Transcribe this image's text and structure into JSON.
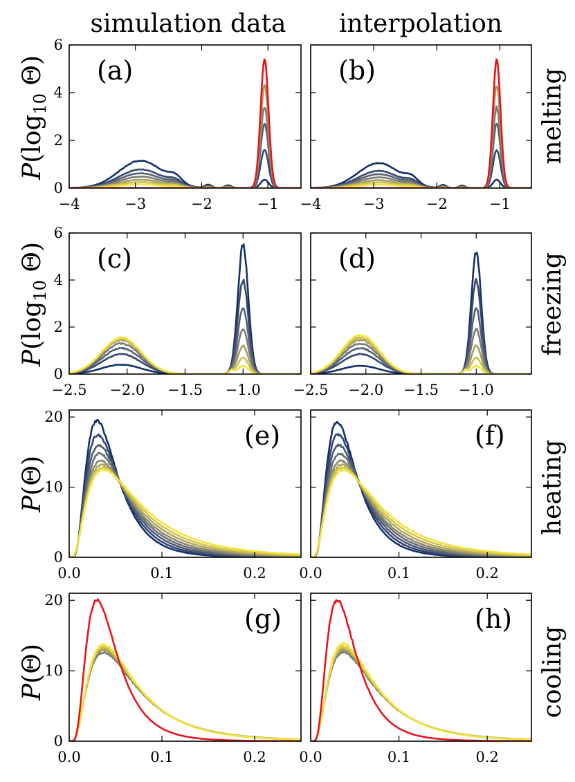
{
  "figure": {
    "col_titles": [
      "simulation data",
      "interpolation"
    ],
    "row_titles": [
      "melting",
      "freezing",
      "heating",
      "cooling"
    ],
    "ylabels": {
      "log": {
        "P": "P",
        "open": "(log",
        "sub": "10",
        "theta": " Θ)"
      },
      "lin": {
        "P": "P",
        "rest": "(Θ)"
      }
    }
  },
  "chart_data": [
    {
      "id": "a",
      "type": "line",
      "panel_label": "(a)",
      "row": "melting",
      "column": "simulation data",
      "xlim": [
        -4,
        -0.5
      ],
      "ylim": [
        0,
        6
      ],
      "xticks": [
        -4,
        -3,
        -2,
        -1
      ],
      "xtick_labels": [
        "−4",
        "−3",
        "−2",
        "−1"
      ],
      "yticks": [
        0,
        2,
        4,
        6
      ],
      "ytick_labels": [
        "0",
        "2",
        "4",
        "6"
      ],
      "label_position": "top-left",
      "family": "melting",
      "bump_scale": [
        1.15,
        0.78,
        0.62,
        0.48,
        0.35,
        0.25,
        0.16
      ],
      "peak_heights": [
        0.35,
        1.6,
        2.7,
        3.4,
        4.3,
        5.4
      ],
      "highlight_color": "#e8141c"
    },
    {
      "id": "b",
      "type": "line",
      "panel_label": "(b)",
      "row": "melting",
      "column": "interpolation",
      "xlim": [
        -4,
        -0.5
      ],
      "ylim": [
        0,
        6
      ],
      "xticks": [
        -4,
        -3,
        -2,
        -1
      ],
      "xtick_labels": [
        "−4",
        "−3",
        "−2",
        "−1"
      ],
      "yticks": [
        0,
        2,
        4,
        6
      ],
      "ytick_labels": [
        "",
        "",
        "",
        ""
      ],
      "label_position": "top-left",
      "family": "melting",
      "bump_scale": [
        1.05,
        0.72,
        0.58,
        0.45,
        0.33,
        0.24,
        0.15
      ],
      "peak_heights": [
        0.35,
        1.6,
        2.7,
        3.4,
        4.3,
        5.4
      ],
      "highlight_color": "#e8141c"
    },
    {
      "id": "c",
      "type": "line",
      "panel_label": "(c)",
      "row": "freezing",
      "column": "simulation data",
      "xlim": [
        -2.5,
        -0.5
      ],
      "ylim": [
        0,
        6
      ],
      "xticks": [
        -2.5,
        -2.0,
        -1.5,
        -1.0
      ],
      "xtick_labels": [
        "−2.5",
        "−2.0",
        "−1.5",
        "−1.0"
      ],
      "yticks": [
        0,
        2,
        4,
        6
      ],
      "ytick_labels": [
        "0",
        "2",
        "4",
        "6"
      ],
      "label_position": "top-left",
      "family": "freezing",
      "left_heights": [
        0.4,
        0.85,
        1.1,
        1.3,
        1.45,
        1.5,
        1.55
      ],
      "right_heights": [
        5.5,
        4.0,
        2.8,
        1.9,
        1.2,
        0.7,
        0.35
      ]
    },
    {
      "id": "d",
      "type": "line",
      "panel_label": "(d)",
      "row": "freezing",
      "column": "interpolation",
      "xlim": [
        -2.5,
        -0.5
      ],
      "ylim": [
        0,
        6
      ],
      "xticks": [
        -2.5,
        -2.0,
        -1.5,
        -1.0
      ],
      "xtick_labels": [
        "−2.5",
        "−2.0",
        "−1.5",
        "−1.0"
      ],
      "yticks": [
        0,
        2,
        4,
        6
      ],
      "ytick_labels": [
        "",
        "",
        "",
        ""
      ],
      "label_position": "top-left",
      "family": "freezing",
      "left_heights": [
        0.35,
        0.85,
        1.1,
        1.3,
        1.45,
        1.55,
        1.65
      ],
      "right_heights": [
        5.2,
        4.0,
        2.8,
        1.9,
        1.2,
        0.7,
        0.35
      ]
    },
    {
      "id": "e",
      "type": "line",
      "panel_label": "(e)",
      "row": "heating",
      "column": "simulation data",
      "xlim": [
        0,
        0.25
      ],
      "ylim": [
        0,
        21
      ],
      "xticks": [
        0,
        0.1,
        0.2
      ],
      "xtick_labels": [
        "0.0",
        "0.1",
        "0.2"
      ],
      "yticks": [
        0,
        10,
        20
      ],
      "ytick_labels": [
        "0",
        "10",
        "20"
      ],
      "label_position": "top-right",
      "family": "heating",
      "peak_heights": [
        19.5,
        17.5,
        16.0,
        14.8,
        13.8,
        13.2,
        12.8,
        12.5
      ],
      "peak_x": [
        0.03,
        0.031,
        0.032,
        0.033,
        0.034,
        0.035,
        0.036,
        0.037
      ]
    },
    {
      "id": "f",
      "type": "line",
      "panel_label": "(f)",
      "row": "heating",
      "column": "interpolation",
      "xlim": [
        0,
        0.25
      ],
      "ylim": [
        0,
        21
      ],
      "xticks": [
        0,
        0.1,
        0.2
      ],
      "xtick_labels": [
        "0.0",
        "0.1",
        "0.2"
      ],
      "yticks": [
        0,
        10,
        20
      ],
      "ytick_labels": [
        "",
        "",
        ""
      ],
      "label_position": "top-right",
      "family": "heating",
      "peak_heights": [
        19.3,
        17.5,
        16.0,
        14.8,
        13.8,
        13.2,
        12.8,
        12.5
      ],
      "peak_x": [
        0.03,
        0.031,
        0.032,
        0.033,
        0.034,
        0.035,
        0.036,
        0.037
      ]
    },
    {
      "id": "g",
      "type": "line",
      "panel_label": "(g)",
      "row": "cooling",
      "column": "simulation data",
      "xlim": [
        0,
        0.25
      ],
      "ylim": [
        0,
        21
      ],
      "xticks": [
        0,
        0.1,
        0.2
      ],
      "xtick_labels": [
        "0.0",
        "0.1",
        "0.2"
      ],
      "yticks": [
        0,
        10,
        20
      ],
      "ytick_labels": [
        "0",
        "10",
        "20"
      ],
      "label_position": "top-right",
      "family": "cooling",
      "peak_heights": [
        12.6,
        12.9,
        13.1,
        13.3,
        13.5,
        13.7
      ],
      "red_peak": 20.0,
      "highlight_color": "#e8141c"
    },
    {
      "id": "h",
      "type": "line",
      "panel_label": "(h)",
      "row": "cooling",
      "column": "interpolation",
      "xlim": [
        0,
        0.25
      ],
      "ylim": [
        0,
        21
      ],
      "xticks": [
        0,
        0.1,
        0.2
      ],
      "xtick_labels": [
        "0.0",
        "0.1",
        "0.2"
      ],
      "yticks": [
        0,
        10,
        20
      ],
      "ytick_labels": [
        "",
        "",
        ""
      ],
      "label_position": "top-right",
      "family": "cooling",
      "peak_heights": [
        12.6,
        12.9,
        13.1,
        13.3,
        13.5,
        13.8
      ],
      "red_peak": 20.0,
      "highlight_color": "#e8141c"
    }
  ],
  "colors": {
    "navy": "#14306b",
    "gray": "#7a7a78",
    "yellow": "#f5e33c"
  }
}
